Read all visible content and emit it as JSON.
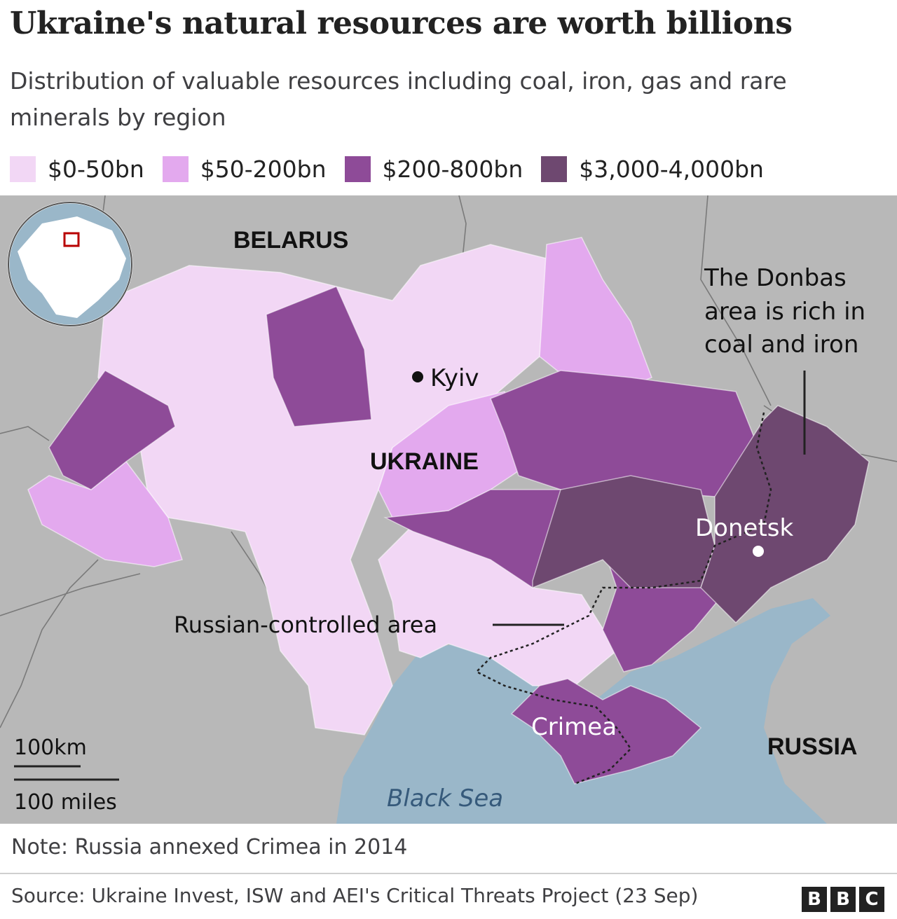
{
  "title": "Ukraine's natural resources are worth billions",
  "subtitle": "Distribution of valuable resources including coal, iron, gas and rare minerals by region",
  "legend": [
    {
      "label": "$0-50bn",
      "color": "#f2d7f5"
    },
    {
      "label": "$50-200bn",
      "color": "#e3a9ee"
    },
    {
      "label": "$200-800bn",
      "color": "#8e4b98"
    },
    {
      "label": "$3,000-4,000bn",
      "color": "#6e4870"
    }
  ],
  "map": {
    "labels": {
      "belarus": "BELARUS",
      "ukraine": "UKRAINE",
      "russia": "RUSSIA",
      "kyiv": "Kyiv",
      "donetsk": "Donetsk",
      "crimea": "Crimea",
      "black_sea": "Black Sea",
      "russian_controlled": "Russian-controlled area",
      "donbas_line1": "The Donbas",
      "donbas_line2": "area is rich in",
      "donbas_line3": "coal and iron"
    },
    "scale": {
      "km": "100km",
      "miles": "100 miles"
    },
    "colors": {
      "land": "#b8b8b8",
      "sea": "#9ab7c9",
      "border": "#777777"
    }
  },
  "note": "Note: Russia annexed Crimea in 2014",
  "source": "Source: Ukraine Invest, ISW and AEI's Critical Threats Project (23 Sep)",
  "logo": [
    "B",
    "B",
    "C"
  ]
}
